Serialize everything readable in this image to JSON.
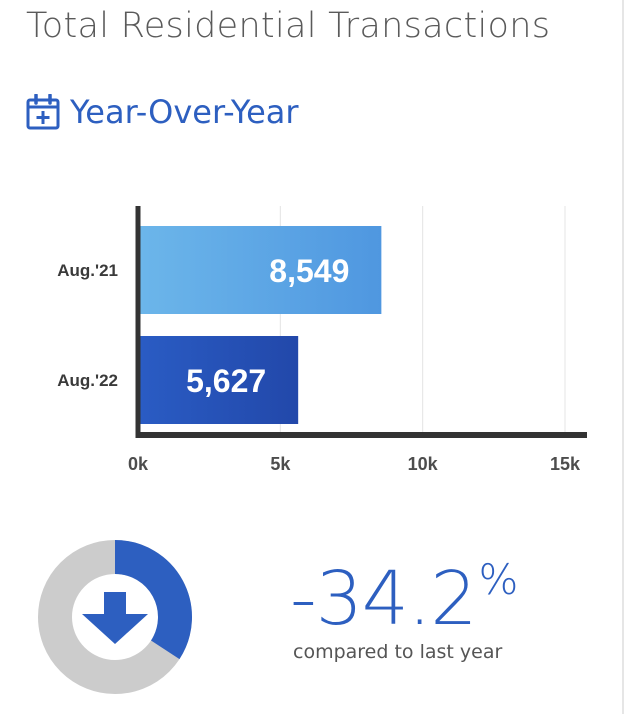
{
  "header": {
    "title": "Total Residential Transactions",
    "subtitle": "Year-Over-Year",
    "subtitle_icon": "calendar-plus-icon"
  },
  "colors": {
    "accent": "#2d5fc0",
    "bar_2021": "#5aa6e6",
    "bar_2022": "#2550b8",
    "axis": "#333333",
    "donut_track": "#cccccc",
    "donut_fill": "#2d5fc0"
  },
  "chart_data": {
    "type": "bar",
    "orientation": "horizontal",
    "categories": [
      "Aug.'21",
      "Aug.'22"
    ],
    "values": [
      8549,
      5627
    ],
    "value_labels": [
      "8,549",
      "5,627"
    ],
    "xlim": [
      0,
      15000
    ],
    "x_ticks": [
      0,
      5000,
      10000,
      15000
    ],
    "x_tick_labels": [
      "0k",
      "5k",
      "10k",
      "15k"
    ],
    "grid": true
  },
  "summary": {
    "change_number": "-34.2",
    "change_symbol": "%",
    "change_fraction": 0.342,
    "caption": "compared to last year",
    "icon": "arrow-down-icon"
  }
}
